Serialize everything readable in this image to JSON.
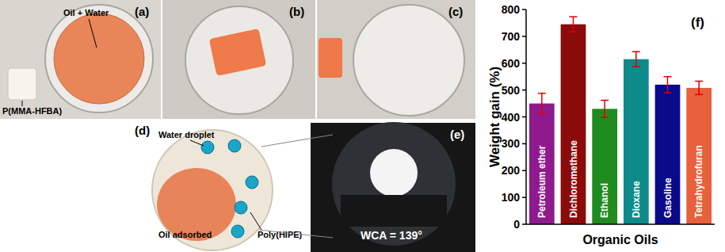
{
  "photos": [
    {
      "label": "(a)",
      "annotations": [
        "Oil + Water",
        "P(MMA-HFBA)"
      ]
    },
    {
      "label": "(b)",
      "annotations": []
    },
    {
      "label": "(c)",
      "annotations": []
    },
    {
      "label": "(d)",
      "annotations": [
        "Water droplet",
        "Oil adsorbed",
        "Poly(HIPE)"
      ]
    },
    {
      "label": "(e)",
      "annotations": [
        "WCA = 139°"
      ]
    }
  ],
  "chart_data": {
    "type": "bar",
    "title": "(f)",
    "categories": [
      "Petroleum ether",
      "Dichloromethane",
      "Ethanol",
      "Dioxane",
      "Gasoline",
      "Tetrahydrofuran"
    ],
    "values": [
      450,
      745,
      430,
      615,
      520,
      508
    ],
    "errors": [
      38,
      28,
      32,
      28,
      30,
      25
    ],
    "colors": [
      "#8e1a8e",
      "#8b0a0a",
      "#1e8c1e",
      "#0e8a8a",
      "#0a0a8a",
      "#e8603c"
    ],
    "y_label": "Weight gain (%)",
    "x_label": "Organic Oils",
    "ylim": [
      0,
      800
    ],
    "yticks": [
      0,
      100,
      200,
      300,
      400,
      500,
      600,
      700,
      800
    ]
  }
}
